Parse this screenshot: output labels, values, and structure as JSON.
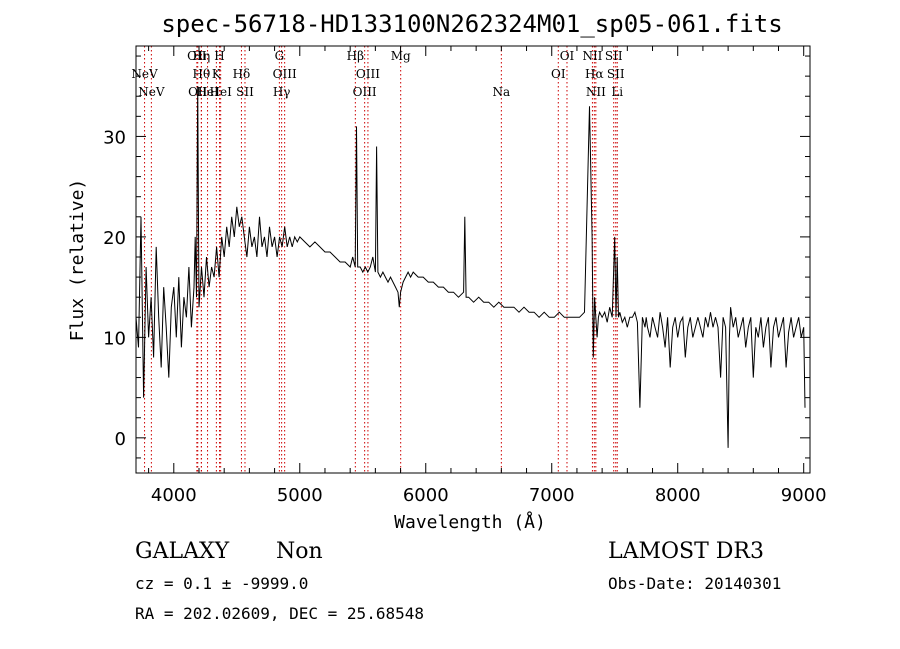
{
  "chart_data": {
    "type": "line",
    "title": "spec-56718-HD133100N262324M01_sp05-061.fits",
    "xlabel": "Wavelength (Å)",
    "ylabel": "Flux (relative)",
    "xlim": [
      3700,
      9050
    ],
    "ylim": [
      -3.5,
      39
    ],
    "x_ticks": [
      4000,
      5000,
      6000,
      7000,
      8000,
      9000
    ],
    "y_ticks": [
      0,
      10,
      20,
      30
    ],
    "grid": false,
    "series": [
      {
        "x": [
          3700,
          3720,
          3740,
          3760,
          3780,
          3800,
          3820,
          3840,
          3860,
          3880,
          3900,
          3920,
          3940,
          3960,
          3980,
          4000,
          4020,
          4040,
          4060,
          4080,
          4100,
          4120,
          4140,
          4160,
          4170,
          4180,
          4190,
          4200,
          4220,
          4240,
          4260,
          4280,
          4300,
          4320,
          4340,
          4360,
          4380,
          4400,
          4420,
          4440,
          4460,
          4480,
          4500,
          4520,
          4540,
          4560,
          4580,
          4600,
          4620,
          4640,
          4660,
          4680,
          4700,
          4720,
          4740,
          4760,
          4780,
          4800,
          4820,
          4840,
          4860,
          4880,
          4900,
          4920,
          4940,
          4960,
          4980,
          5000,
          5040,
          5080,
          5120,
          5160,
          5200,
          5240,
          5280,
          5320,
          5360,
          5400,
          5420,
          5440,
          5450,
          5460,
          5480,
          5500,
          5520,
          5540,
          5560,
          5580,
          5600,
          5610,
          5620,
          5640,
          5660,
          5680,
          5700,
          5720,
          5740,
          5760,
          5780,
          5790,
          5800,
          5820,
          5840,
          5860,
          5880,
          5900,
          5940,
          5980,
          6020,
          6060,
          6100,
          6140,
          6180,
          6220,
          6260,
          6300,
          6310,
          6320,
          6340,
          6380,
          6420,
          6460,
          6500,
          6540,
          6580,
          6620,
          6660,
          6700,
          6740,
          6780,
          6820,
          6860,
          6900,
          6940,
          6980,
          7020,
          7060,
          7100,
          7140,
          7180,
          7220,
          7260,
          7300,
          7320,
          7330,
          7340,
          7350,
          7360,
          7370,
          7380,
          7400,
          7420,
          7440,
          7460,
          7480,
          7500,
          7510,
          7520,
          7530,
          7540,
          7560,
          7580,
          7600,
          7620,
          7640,
          7660,
          7680,
          7700,
          7720,
          7740,
          7750,
          7760,
          7780,
          7800,
          7820,
          7840,
          7860,
          7880,
          7900,
          7920,
          7940,
          7960,
          7980,
          8000,
          8020,
          8040,
          8060,
          8080,
          8100,
          8120,
          8140,
          8160,
          8180,
          8200,
          8220,
          8240,
          8260,
          8280,
          8300,
          8320,
          8340,
          8360,
          8380,
          8400,
          8410,
          8420,
          8440,
          8460,
          8480,
          8500,
          8520,
          8540,
          8560,
          8580,
          8600,
          8620,
          8640,
          8660,
          8680,
          8700,
          8720,
          8740,
          8760,
          8780,
          8800,
          8820,
          8840,
          8860,
          8880,
          8900,
          8920,
          8940,
          8960,
          8980,
          9000,
          9010
        ],
        "y": [
          12,
          9,
          22,
          4,
          17,
          10,
          14,
          8,
          19,
          12,
          7,
          15,
          11,
          6,
          13,
          15,
          10,
          16,
          9,
          14,
          12,
          17,
          11,
          15,
          20,
          14,
          35,
          13,
          17,
          14,
          18,
          15,
          17,
          16,
          19,
          16,
          20,
          18,
          21,
          19,
          22,
          20,
          23,
          21,
          22,
          20,
          18,
          21,
          19,
          20,
          18,
          22,
          19,
          20,
          18,
          21,
          19,
          20,
          18,
          20,
          19,
          21,
          19,
          20,
          19,
          20,
          19.5,
          20,
          19.5,
          19,
          19.5,
          19,
          18.5,
          18.5,
          18,
          17.5,
          17.5,
          17,
          18,
          17,
          31,
          17,
          17,
          16.5,
          17,
          16.5,
          17,
          18,
          16.5,
          29,
          16.5,
          16,
          16.5,
          16,
          15.5,
          16,
          15.5,
          15,
          14.5,
          13,
          14.5,
          15.5,
          16,
          16.5,
          16,
          16.5,
          16,
          16,
          15.5,
          15.5,
          15,
          15,
          14.5,
          14.5,
          14,
          14.5,
          22,
          14,
          14,
          13.5,
          14,
          13.5,
          13.5,
          13,
          13.5,
          13,
          13,
          13,
          12.5,
          13,
          12.5,
          12.5,
          12,
          12.5,
          12,
          12,
          12.5,
          12,
          12,
          12,
          12,
          12.5,
          33,
          20,
          8,
          14,
          12,
          10,
          12,
          12.5,
          12,
          12.5,
          11.5,
          13,
          12,
          20,
          12,
          18,
          12,
          12.5,
          11.5,
          12,
          11,
          12,
          12,
          12.5,
          11.5,
          3,
          12,
          11,
          12,
          11,
          10,
          12,
          11,
          10,
          12.5,
          11,
          9,
          12,
          7,
          11,
          12,
          10,
          11.5,
          12,
          8,
          11,
          12,
          10,
          11,
          12,
          11,
          10,
          12,
          11,
          12.5,
          11,
          12,
          11,
          6,
          12,
          11,
          -1,
          10,
          13,
          11,
          12,
          10,
          11,
          12,
          9,
          11,
          12,
          6,
          11,
          10,
          12,
          9,
          11,
          12,
          7,
          11,
          12,
          10,
          11,
          12,
          7,
          10.5,
          12,
          10,
          11,
          12,
          10,
          11,
          3
        ]
      }
    ],
    "lines": [
      {
        "label": "NeV",
        "wave": 3768,
        "row": 1
      },
      {
        "label": "NeV",
        "wave": 3822,
        "row": 2
      },
      {
        "label": "OII",
        "wave": 4183,
        "row": 0
      },
      {
        "label": "OII",
        "wave": 4190,
        "row": 2
      },
      {
        "label": "Hη",
        "wave": 4219,
        "row": 0
      },
      {
        "label": "Hθ",
        "wave": 4219,
        "row": 1
      },
      {
        "label": "HeI",
        "wave": 4268,
        "row": 2
      },
      {
        "label": "H",
        "wave": 4363,
        "row": 0
      },
      {
        "label": "K",
        "wave": 4338,
        "row": 1
      },
      {
        "label": "HeI",
        "wave": 4372,
        "row": 2
      },
      {
        "label": "Hδ",
        "wave": 4537,
        "row": 1
      },
      {
        "label": "SII",
        "wave": 4565,
        "row": 2
      },
      {
        "label": "G",
        "wave": 4838,
        "row": 0
      },
      {
        "label": "OIII",
        "wave": 4880,
        "row": 1
      },
      {
        "label": "Hγ",
        "wave": 4856,
        "row": 2
      },
      {
        "label": "Hβ",
        "wave": 5441,
        "row": 0
      },
      {
        "label": "OIII",
        "wave": 5541,
        "row": 1
      },
      {
        "label": "OIII",
        "wave": 5515,
        "row": 2
      },
      {
        "label": "Mg",
        "wave": 5801,
        "row": 0
      },
      {
        "label": "Na",
        "wave": 6600,
        "row": 2
      },
      {
        "label": "OI",
        "wave": 7121,
        "row": 0
      },
      {
        "label": "OI",
        "wave": 7052,
        "row": 1
      },
      {
        "label": "NII",
        "wave": 7323,
        "row": 0
      },
      {
        "label": "Hα",
        "wave": 7338,
        "row": 1
      },
      {
        "label": "NII",
        "wave": 7350,
        "row": 2
      },
      {
        "label": "SII",
        "wave": 7492,
        "row": 0
      },
      {
        "label": "SII",
        "wave": 7508,
        "row": 1
      },
      {
        "label": "Li",
        "wave": 7520,
        "row": 2
      }
    ]
  },
  "info": {
    "class": "GALAXY",
    "subclass": "Non",
    "survey": "LAMOST DR3",
    "cz": "cz = 0.1 ± -9999.0",
    "obs_date": "Obs-Date: 20140301",
    "radec": "RA = 202.02609, DEC =  25.68548"
  },
  "colors": {
    "spectrum": "#000000",
    "line_marker": "#cc0000",
    "axis": "#000000"
  }
}
